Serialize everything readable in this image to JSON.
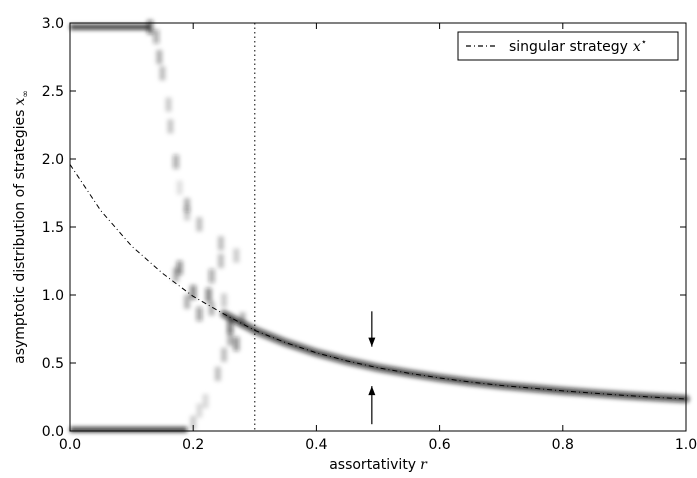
{
  "chart_data": {
    "type": "scatter",
    "title": "",
    "xlabel": "assortativity",
    "xlabel_symbol": "r",
    "ylabel": "asymptotic distribution of strategies",
    "ylabel_symbol": "x",
    "ylabel_subscript": "∞",
    "xlim": [
      0.0,
      1.0
    ],
    "ylim": [
      0.0,
      3.0
    ],
    "x_ticks": [
      0.0,
      0.2,
      0.4,
      0.6,
      0.8,
      1.0
    ],
    "x_tick_labels": [
      "0.0",
      "0.2",
      "0.4",
      "0.6",
      "0.8",
      "1.0"
    ],
    "y_ticks": [
      0.0,
      0.5,
      1.0,
      1.5,
      2.0,
      2.5,
      3.0
    ],
    "y_tick_labels": [
      "0.0",
      "0.5",
      "1.0",
      "1.5",
      "2.0",
      "2.5",
      "3.0"
    ],
    "grid": false,
    "legend": {
      "position": "top-right",
      "entries": [
        {
          "label": "singular strategy",
          "symbol": "x",
          "superscript": "⋆",
          "style": "dash-dot",
          "color": "#000000"
        }
      ]
    },
    "series": [
      {
        "name": "singular strategy",
        "style": "dash-dot",
        "color": "#000000",
        "x": [
          0.0,
          0.05,
          0.1,
          0.15,
          0.2,
          0.25,
          0.3,
          0.35,
          0.4,
          0.45,
          0.5,
          0.55,
          0.6,
          0.65,
          0.7,
          0.75,
          0.8,
          0.85,
          0.9,
          0.95,
          1.0
        ],
        "y": [
          1.96,
          1.62,
          1.36,
          1.16,
          0.99,
          0.86,
          0.74,
          0.65,
          0.575,
          0.515,
          0.465,
          0.425,
          0.39,
          0.36,
          0.335,
          0.315,
          0.295,
          0.278,
          0.262,
          0.248,
          0.235
        ]
      }
    ],
    "density": {
      "color": "#111111",
      "top_band": {
        "y": 2.97,
        "x_from": 0.0,
        "x_to": 0.13,
        "opacity": 0.85
      },
      "bottom_band": {
        "y": 0.01,
        "x_from": 0.0,
        "x_to": 0.19,
        "opacity": 0.85
      },
      "branch_up": [
        {
          "x": 0.13,
          "y": 2.97,
          "opacity": 0.55
        },
        {
          "x": 0.14,
          "y": 2.9,
          "opacity": 0.35
        },
        {
          "x": 0.145,
          "y": 2.75,
          "opacity": 0.3
        },
        {
          "x": 0.15,
          "y": 2.63,
          "opacity": 0.25
        },
        {
          "x": 0.16,
          "y": 2.4,
          "opacity": 0.2
        },
        {
          "x": 0.163,
          "y": 2.24,
          "opacity": 0.22
        },
        {
          "x": 0.172,
          "y": 1.98,
          "opacity": 0.35
        },
        {
          "x": 0.178,
          "y": 1.79,
          "opacity": 0.12
        },
        {
          "x": 0.178,
          "y": 1.2,
          "opacity": 0.45
        },
        {
          "x": 0.172,
          "y": 1.15,
          "opacity": 0.3
        },
        {
          "x": 0.19,
          "y": 1.66,
          "opacity": 0.3
        },
        {
          "x": 0.19,
          "y": 1.6,
          "opacity": 0.2
        },
        {
          "x": 0.19,
          "y": 0.95,
          "opacity": 0.3
        },
        {
          "x": 0.2,
          "y": 1.02,
          "opacity": 0.5
        },
        {
          "x": 0.21,
          "y": 1.52,
          "opacity": 0.25
        },
        {
          "x": 0.21,
          "y": 0.86,
          "opacity": 0.4
        },
        {
          "x": 0.225,
          "y": 1.0,
          "opacity": 0.5
        },
        {
          "x": 0.23,
          "y": 1.14,
          "opacity": 0.35
        },
        {
          "x": 0.23,
          "y": 0.9,
          "opacity": 0.3
        },
        {
          "x": 0.245,
          "y": 1.38,
          "opacity": 0.25
        },
        {
          "x": 0.245,
          "y": 1.25,
          "opacity": 0.25
        },
        {
          "x": 0.25,
          "y": 0.96,
          "opacity": 0.2
        },
        {
          "x": 0.26,
          "y": 0.77,
          "opacity": 0.55
        },
        {
          "x": 0.27,
          "y": 1.29,
          "opacity": 0.2
        },
        {
          "x": 0.27,
          "y": 0.64,
          "opacity": 0.45
        },
        {
          "x": 0.28,
          "y": 0.82,
          "opacity": 0.3
        }
      ],
      "branch_down": [
        {
          "x": 0.2,
          "y": 0.06,
          "opacity": 0.2
        },
        {
          "x": 0.21,
          "y": 0.15,
          "opacity": 0.15
        },
        {
          "x": 0.22,
          "y": 0.22,
          "opacity": 0.15
        },
        {
          "x": 0.24,
          "y": 0.42,
          "opacity": 0.25
        },
        {
          "x": 0.25,
          "y": 0.56,
          "opacity": 0.25
        },
        {
          "x": 0.26,
          "y": 0.68,
          "opacity": 0.3
        }
      ]
    },
    "vertical_line": {
      "x": 0.3,
      "style": "dotted"
    },
    "annotations": [
      {
        "type": "arrow",
        "direction": "down",
        "x": 0.49,
        "y_from": 0.88,
        "y_to": 0.62
      },
      {
        "type": "arrow",
        "direction": "up",
        "x": 0.49,
        "y_from": 0.05,
        "y_to": 0.33
      }
    ]
  }
}
